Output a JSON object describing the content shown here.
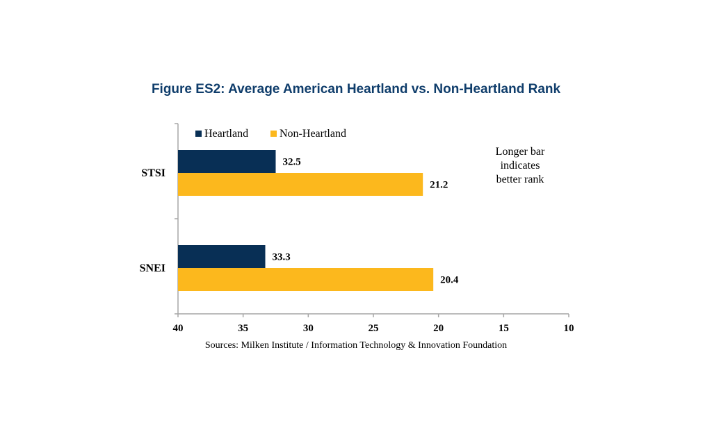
{
  "chart_data": {
    "type": "bar",
    "orientation": "horizontal",
    "title": "Figure ES2: Average American Heartland vs. Non-Heartland Rank",
    "categories": [
      "STSI",
      "SNEI"
    ],
    "series": [
      {
        "name": "Heartland",
        "values": [
          32.5,
          33.3
        ],
        "color": "#082f55"
      },
      {
        "name": "Non-Heartland",
        "values": [
          21.2,
          20.4
        ],
        "color": "#fcb81d"
      }
    ],
    "xlim": [
      40,
      10
    ],
    "x_reversed": true,
    "xticks": [
      40,
      35,
      30,
      25,
      20,
      15,
      10
    ],
    "value_labels": [
      "32.5",
      "21.2",
      "33.3",
      "20.4"
    ],
    "legend_position": "top-left",
    "annotation": [
      "Longer bar",
      "indicates",
      "better rank"
    ],
    "source": "Sources: Milken Institute / Information Technology & Innovation Foundation"
  }
}
